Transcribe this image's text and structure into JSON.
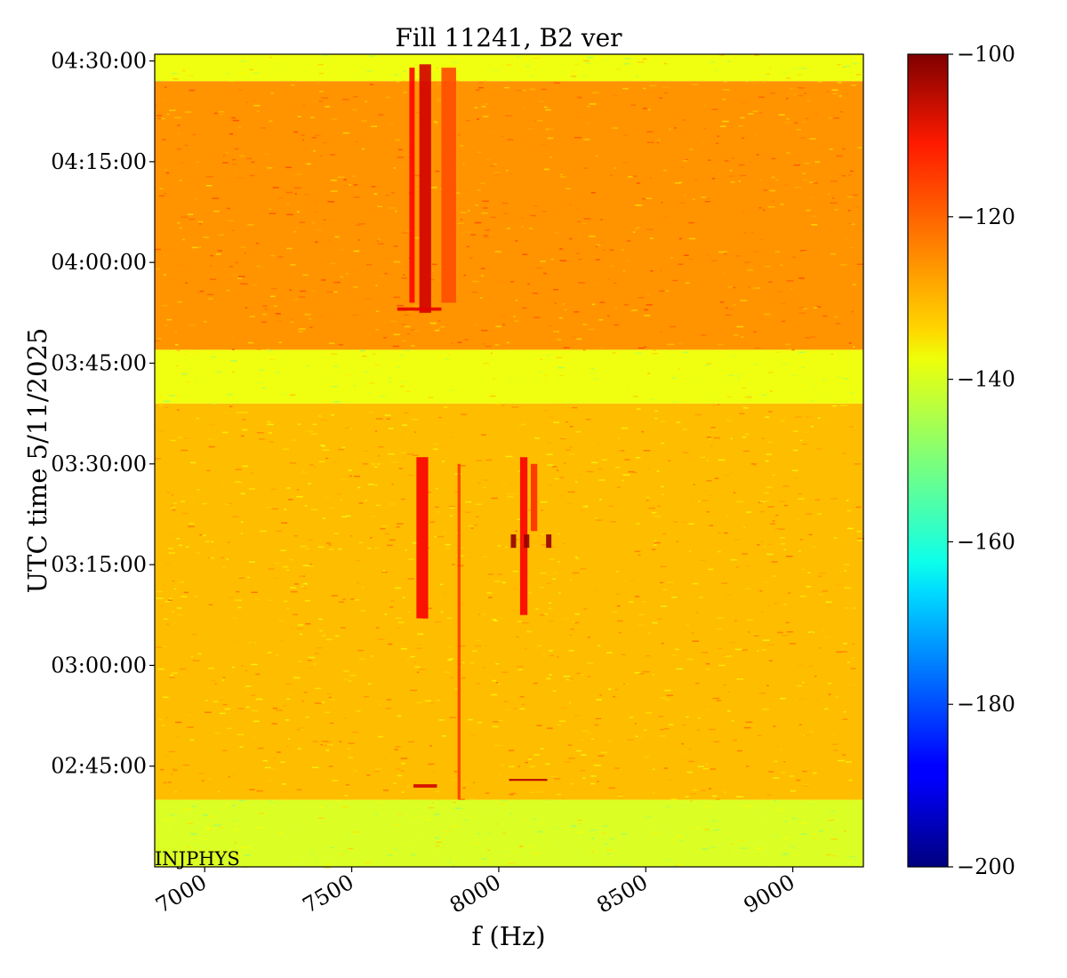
{
  "chart_data": {
    "type": "heatmap",
    "title": "Fill 11241, B2 ver",
    "xlabel": "f (Hz)",
    "ylabel": "UTC time 5/11/2025",
    "xlim": [
      6830,
      9240
    ],
    "ylim_minutes": [
      150,
      271
    ],
    "x_ticks": [
      7000,
      7500,
      8000,
      8500,
      9000
    ],
    "x_tick_labels": [
      "7000",
      "7500",
      "8000",
      "8500",
      "9000"
    ],
    "y_ticks_minutes": [
      165,
      180,
      195,
      210,
      225,
      240,
      255,
      270
    ],
    "y_tick_labels": [
      "02:45:00",
      "03:00:00",
      "03:15:00",
      "03:30:00",
      "03:45:00",
      "04:00:00",
      "04:15:00",
      "04:30:00"
    ],
    "colorbar": {
      "range": [
        -200,
        -100
      ],
      "ticks": [
        -100,
        -120,
        -140,
        -160,
        -180,
        -200
      ],
      "tick_labels": [
        "−100",
        "−120",
        "−140",
        "−160",
        "−180",
        "−200"
      ],
      "colormap": "jet"
    },
    "corner_label": "INJPHYS",
    "background_levels_dB": [
      {
        "t_start": 150,
        "t_end": 160,
        "level": -141
      },
      {
        "t_start": 160,
        "t_end": 219,
        "level": -131
      },
      {
        "t_start": 219,
        "t_end": 227,
        "level": -139
      },
      {
        "t_start": 227,
        "t_end": 267,
        "level": -127
      },
      {
        "t_start": 267,
        "t_end": 271,
        "level": -139
      }
    ],
    "features": [
      {
        "f_center": 7750,
        "width_hz": 40,
        "t_start": 232.5,
        "t_end": 269.5,
        "level": -108
      },
      {
        "f_center": 7705,
        "width_hz": 18,
        "t_start": 234,
        "t_end": 269,
        "level": -113
      },
      {
        "f_center": 7830,
        "width_hz": 50,
        "t_start": 234,
        "t_end": 269,
        "level": -120
      },
      {
        "f_center": 7740,
        "width_hz": 40,
        "t_start": 187,
        "t_end": 211,
        "level": -112
      },
      {
        "f_center": 7865,
        "width_hz": 10,
        "t_start": 160,
        "t_end": 210,
        "level": -118
      },
      {
        "f_center": 8085,
        "width_hz": 25,
        "t_start": 187.5,
        "t_end": 211,
        "level": -112
      },
      {
        "f_center": 8120,
        "width_hz": 22,
        "t_start": 200,
        "t_end": 210,
        "level": -117
      },
      {
        "f_center": 8050,
        "width_hz": 18,
        "t_start": 197.5,
        "t_end": 199.5,
        "level": -102
      },
      {
        "f_center": 8095,
        "width_hz": 18,
        "t_start": 197.5,
        "t_end": 199.5,
        "level": -102
      },
      {
        "f_center": 8170,
        "width_hz": 18,
        "t_start": 197.5,
        "t_end": 199.5,
        "level": -102
      },
      {
        "f_center": 7750,
        "width_hz": 80,
        "t_start": 161.8,
        "t_end": 162.3,
        "level": -108
      },
      {
        "f_center": 8100,
        "width_hz": 130,
        "t_start": 162.8,
        "t_end": 163.1,
        "level": -105
      },
      {
        "f_center": 7730,
        "width_hz": 150,
        "t_start": 232.8,
        "t_end": 233.3,
        "level": -110
      }
    ]
  }
}
